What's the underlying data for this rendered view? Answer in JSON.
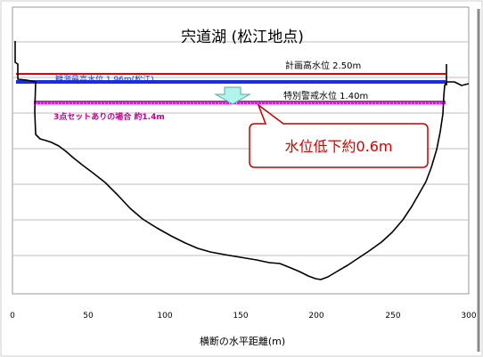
{
  "title": "宍道湖 (松江地点)",
  "x_axis": {
    "label": "横断の水平距離(m)",
    "ticks": [
      0,
      50,
      100,
      150,
      200,
      250,
      300
    ],
    "range": [
      0,
      300
    ]
  },
  "levels": {
    "planned_high": {
      "label": "計画高水位 2.50m",
      "color": "#e00000"
    },
    "observed_max": {
      "label": "観測最高水位 1.96m(松江)",
      "color": "#1a2ee0"
    },
    "special_warning": {
      "label": "特別警戒水位 1.40m",
      "color": "#d400d4"
    }
  },
  "three_point_set": {
    "label": "3点セットありの場合 約1.4m",
    "color": "#ff00ff"
  },
  "callout": {
    "text": "水位低下約0.6m",
    "color": "#d40000"
  },
  "arrow": {
    "fill": "#b0f5ec"
  }
}
